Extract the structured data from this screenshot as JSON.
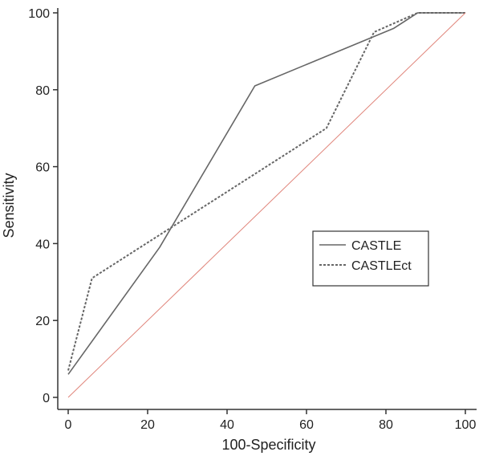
{
  "chart_data": {
    "type": "line",
    "title": "",
    "xlabel": "100-Specificity",
    "ylabel": "Sensitivity",
    "xlim": [
      0,
      100
    ],
    "ylim": [
      0,
      100
    ],
    "x_ticks": [
      0,
      20,
      40,
      60,
      80,
      100
    ],
    "y_ticks": [
      0,
      20,
      40,
      60,
      80,
      100
    ],
    "grid": false,
    "legend_position": "right",
    "series": [
      {
        "name": "CASTLE",
        "line_style": "solid",
        "color": "#666666",
        "points": [
          [
            0,
            6
          ],
          [
            23,
            39
          ],
          [
            47,
            81
          ],
          [
            82,
            96
          ],
          [
            88,
            100
          ],
          [
            100,
            100
          ]
        ]
      },
      {
        "name": "CASTLEct",
        "line_style": "dashed",
        "color": "#666666",
        "points": [
          [
            0,
            7
          ],
          [
            6,
            31
          ],
          [
            65,
            70
          ],
          [
            77,
            95
          ],
          [
            88,
            100
          ],
          [
            100,
            100
          ]
        ]
      },
      {
        "name": "",
        "line_style": "solid",
        "color": "#e0847a",
        "points": [
          [
            0,
            0
          ],
          [
            100,
            100
          ]
        ]
      }
    ]
  }
}
